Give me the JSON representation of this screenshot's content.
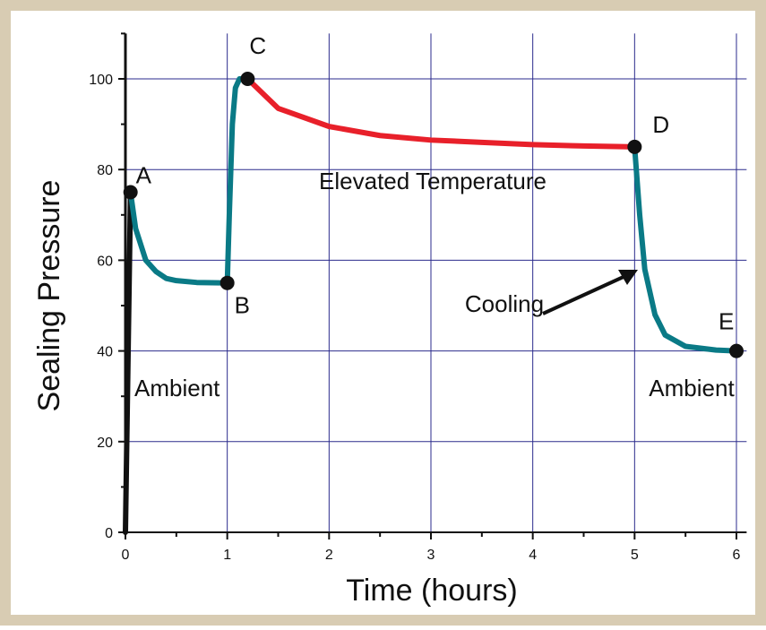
{
  "chart_data": {
    "type": "line",
    "xlabel": "Time (hours)",
    "ylabel": "Sealing Pressure",
    "xlim": [
      0,
      6.1
    ],
    "ylim": [
      0,
      110
    ],
    "xticks": [
      0,
      1,
      2,
      3,
      4,
      5,
      6
    ],
    "yticks": [
      0,
      20,
      40,
      60,
      80,
      100
    ],
    "xminorticks": [
      0.5,
      1.5,
      2.5,
      3.5,
      4.5,
      5.5
    ],
    "yminorticks": [
      10,
      30,
      50,
      70,
      90,
      110
    ],
    "grid": true,
    "grid_color": "#2b2b8c",
    "series": [
      {
        "color": "#111111",
        "x": [
          0,
          0.05
        ],
        "values": [
          0,
          75
        ]
      },
      {
        "color": "#0a7a86",
        "x": [
          0.05,
          0.1,
          0.2,
          0.3,
          0.4,
          0.5,
          0.7,
          1.0
        ],
        "values": [
          75,
          67,
          60,
          57.5,
          56,
          55.5,
          55.1,
          55
        ]
      },
      {
        "color": "#0a7a86",
        "x": [
          1.0,
          1.02,
          1.05,
          1.08,
          1.12,
          1.2
        ],
        "values": [
          55,
          70,
          90,
          98,
          100,
          100
        ]
      },
      {
        "color": "#e8202a",
        "x": [
          1.2,
          1.5,
          2,
          2.5,
          3,
          3.5,
          4,
          4.5,
          5
        ],
        "values": [
          100,
          93.5,
          89.5,
          87.5,
          86.5,
          86,
          85.5,
          85.2,
          85
        ]
      },
      {
        "color": "#0a7a86",
        "x": [
          5,
          5.05,
          5.1,
          5.2,
          5.3,
          5.5,
          5.8,
          6
        ],
        "values": [
          85,
          70,
          58,
          48,
          43.5,
          41,
          40.2,
          40
        ]
      }
    ],
    "points": [
      {
        "label": "A",
        "x": 0.05,
        "y": 75
      },
      {
        "label": "B",
        "x": 1,
        "y": 55
      },
      {
        "label": "C",
        "x": 1.2,
        "y": 100
      },
      {
        "label": "D",
        "x": 5,
        "y": 85
      },
      {
        "label": "E",
        "x": 6,
        "y": 40
      }
    ],
    "annotations": [
      "Elevated Temperature",
      "Ambient",
      "Cooling",
      "Ambient"
    ]
  }
}
